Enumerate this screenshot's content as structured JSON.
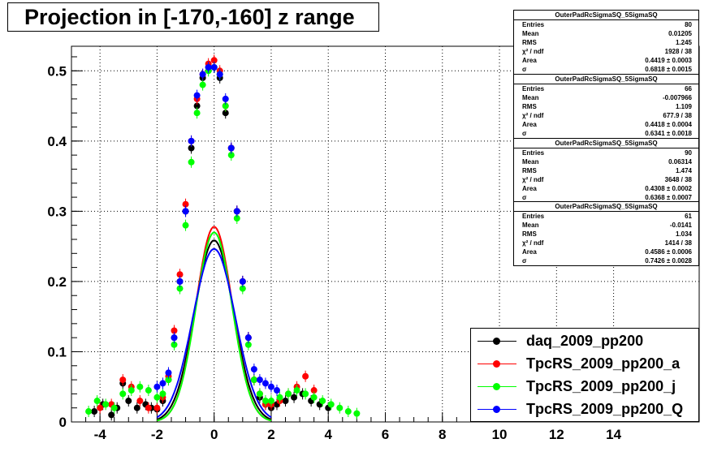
{
  "title": "Projection in [-170,-160] z range",
  "colors": {
    "black": "#000000",
    "red": "#ff0000",
    "green": "#00ff00",
    "blue": "#0000ff"
  },
  "stats_boxes": [
    {
      "name": "OuterPadRcSigmaSQ_5SigmaSQ",
      "rows": [
        {
          "k": "Entries",
          "v": "80"
        },
        {
          "k": "Mean",
          "v": "0.01205"
        },
        {
          "k": "RMS",
          "v": "1.245"
        },
        {
          "k": "χ² / ndf",
          "v": "1928 / 38"
        },
        {
          "k": "Area",
          "v": "0.4419 ± 0.0003"
        },
        {
          "k": "σ",
          "v": "0.6818 ± 0.0015"
        }
      ]
    },
    {
      "name": "OuterPadRcSigmaSQ_5SigmaSQ",
      "rows": [
        {
          "k": "Entries",
          "v": "66"
        },
        {
          "k": "Mean",
          "v": "-0.007966"
        },
        {
          "k": "RMS",
          "v": "1.109"
        },
        {
          "k": "χ² / ndf",
          "v": "677.9 / 38"
        },
        {
          "k": "Area",
          "v": "0.4418 ± 0.0004"
        },
        {
          "k": "σ",
          "v": "0.6341 ± 0.0018"
        }
      ]
    },
    {
      "name": "OuterPadRcSigmaSQ_5SigmaSQ",
      "rows": [
        {
          "k": "Entries",
          "v": "90"
        },
        {
          "k": "Mean",
          "v": "0.06314"
        },
        {
          "k": "RMS",
          "v": "1.474"
        },
        {
          "k": "χ² / ndf",
          "v": "3648 / 38"
        },
        {
          "k": "Area",
          "v": "0.4308 ± 0.0002"
        },
        {
          "k": "σ",
          "v": "0.6368 ± 0.0007"
        }
      ]
    },
    {
      "name": "OuterPadRcSigmaSQ_5SigmaSQ",
      "rows": [
        {
          "k": "Entries",
          "v": "61"
        },
        {
          "k": "Mean",
          "v": "-0.0141"
        },
        {
          "k": "RMS",
          "v": "1.034"
        },
        {
          "k": "χ² / ndf",
          "v": "1414 / 38"
        },
        {
          "k": "Area",
          "v": "0.4586 ± 0.0006"
        },
        {
          "k": "σ",
          "v": "0.7426 ± 0.0028"
        }
      ]
    }
  ],
  "legend": [
    {
      "label": "daq_2009_pp200",
      "color": "#000000"
    },
    {
      "label": "TpcRS_2009_pp200_a",
      "color": "#ff0000"
    },
    {
      "label": "TpcRS_2009_pp200_j",
      "color": "#00ff00"
    },
    {
      "label": "TpcRS_2009_pp200_Q",
      "color": "#0000ff"
    }
  ],
  "chart_data": {
    "type": "scatter",
    "title": "Projection in [-170,-160] z range",
    "xlim": [
      -5,
      17
    ],
    "ylim": [
      0,
      0.535
    ],
    "xticks": [
      -4,
      -2,
      0,
      2,
      4,
      6,
      8,
      10,
      12,
      14
    ],
    "yticks": [
      0,
      0.1,
      0.2,
      0.3,
      0.4,
      0.5
    ],
    "xtick_labels": [
      "-4",
      "-2",
      "0",
      "2",
      "4",
      "6",
      "8",
      "10",
      "12",
      "14"
    ],
    "ytick_labels": [
      "0",
      "0.1",
      "0.2",
      "0.3",
      "0.4",
      "0.5"
    ],
    "grid": true,
    "series": [
      {
        "name": "daq_2009_pp200",
        "color": "#000000",
        "x": [
          -4.2,
          -3.9,
          -3.6,
          -3.4,
          -3.2,
          -3.0,
          -2.7,
          -2.4,
          -2.2,
          -2.0,
          -1.8,
          -1.6,
          -1.4,
          -1.2,
          -1.0,
          -0.8,
          -0.6,
          -0.4,
          -0.2,
          0.0,
          0.2,
          0.4,
          0.6,
          0.8,
          1.0,
          1.2,
          1.4,
          1.6,
          1.8,
          2.0,
          2.2,
          2.5,
          2.8,
          3.1,
          3.4,
          3.7,
          4.0
        ],
        "y": [
          0.015,
          0.025,
          0.01,
          0.02,
          0.055,
          0.03,
          0.02,
          0.025,
          0.02,
          0.018,
          0.03,
          0.06,
          0.12,
          0.2,
          0.3,
          0.39,
          0.45,
          0.49,
          0.505,
          0.505,
          0.49,
          0.44,
          0.39,
          0.3,
          0.2,
          0.12,
          0.06,
          0.035,
          0.025,
          0.02,
          0.025,
          0.03,
          0.035,
          0.04,
          0.03,
          0.025,
          0.02
        ]
      },
      {
        "name": "TpcRS_2009_pp200_a",
        "color": "#ff0000",
        "x": [
          -4.0,
          -3.6,
          -3.2,
          -2.9,
          -2.6,
          -2.3,
          -2.0,
          -1.8,
          -1.6,
          -1.4,
          -1.2,
          -1.0,
          -0.8,
          -0.6,
          -0.4,
          -0.2,
          0.0,
          0.2,
          0.4,
          0.6,
          0.8,
          1.0,
          1.2,
          1.4,
          1.6,
          1.8,
          2.0,
          2.3,
          2.6,
          2.9,
          3.2,
          3.5
        ],
        "y": [
          0.02,
          0.025,
          0.06,
          0.05,
          0.03,
          0.02,
          0.02,
          0.035,
          0.065,
          0.13,
          0.21,
          0.31,
          0.4,
          0.46,
          0.495,
          0.51,
          0.515,
          0.5,
          0.45,
          0.39,
          0.3,
          0.2,
          0.12,
          0.06,
          0.04,
          0.025,
          0.025,
          0.03,
          0.04,
          0.05,
          0.065,
          0.045
        ]
      },
      {
        "name": "TpcRS_2009_pp200_j",
        "color": "#00ff00",
        "x": [
          -4.4,
          -4.1,
          -3.8,
          -3.5,
          -3.2,
          -2.9,
          -2.6,
          -2.3,
          -2.0,
          -1.8,
          -1.6,
          -1.4,
          -1.2,
          -1.0,
          -0.8,
          -0.6,
          -0.4,
          -0.2,
          0.0,
          0.2,
          0.4,
          0.6,
          0.8,
          1.0,
          1.2,
          1.4,
          1.6,
          1.8,
          2.0,
          2.3,
          2.6,
          2.9,
          3.2,
          3.5,
          3.8,
          4.1,
          4.4,
          4.7,
          5.0
        ],
        "y": [
          0.015,
          0.03,
          0.025,
          0.02,
          0.04,
          0.045,
          0.05,
          0.045,
          0.035,
          0.04,
          0.06,
          0.11,
          0.19,
          0.28,
          0.37,
          0.44,
          0.48,
          0.5,
          0.505,
          0.495,
          0.45,
          0.38,
          0.29,
          0.19,
          0.11,
          0.06,
          0.04,
          0.03,
          0.03,
          0.035,
          0.04,
          0.045,
          0.04,
          0.035,
          0.03,
          0.025,
          0.02,
          0.015,
          0.012
        ]
      },
      {
        "name": "TpcRS_2009_pp200_Q",
        "color": "#0000ff",
        "x": [
          -2.0,
          -1.8,
          -1.6,
          -1.4,
          -1.2,
          -1.0,
          -0.8,
          -0.6,
          -0.4,
          -0.2,
          0.0,
          0.2,
          0.4,
          0.6,
          0.8,
          1.0,
          1.2,
          1.4,
          1.6,
          1.8,
          2.0,
          2.2
        ],
        "y": [
          0.05,
          0.055,
          0.07,
          0.12,
          0.2,
          0.3,
          0.4,
          0.465,
          0.495,
          0.505,
          0.505,
          0.495,
          0.46,
          0.39,
          0.3,
          0.2,
          0.12,
          0.075,
          0.06,
          0.055,
          0.05,
          0.045
        ]
      }
    ],
    "fits": [
      {
        "series": "daq_2009_pp200",
        "color": "#000000",
        "area": 0.4419,
        "sigma": 0.6818
      },
      {
        "series": "TpcRS_2009_pp200_a",
        "color": "#ff0000",
        "area": 0.4418,
        "sigma": 0.6341
      },
      {
        "series": "TpcRS_2009_pp200_j",
        "color": "#00ff00",
        "area": 0.4308,
        "sigma": 0.6368
      },
      {
        "series": "TpcRS_2009_pp200_Q",
        "color": "#0000ff",
        "area": 0.4586,
        "sigma": 0.7426
      }
    ]
  }
}
